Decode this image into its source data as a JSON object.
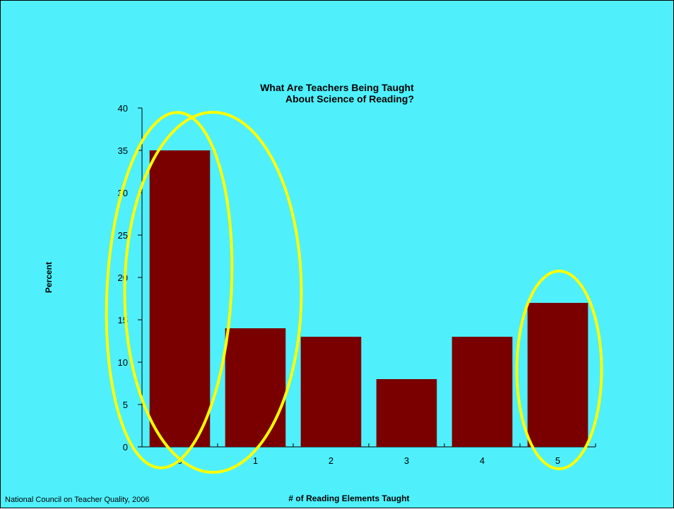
{
  "source_note": "National Council on Teacher Quality, 2006",
  "colors": {
    "background": "#4ff0fc",
    "bar": "#7a0000",
    "highlight": "#ffff00"
  },
  "chart_data": {
    "type": "bar",
    "title_lines": [
      "What Are Teachers Being Taught",
      "About Science of Reading?"
    ],
    "xlabel": "# of Reading Elements Taught",
    "ylabel": "Percent",
    "categories": [
      "0",
      "1",
      "2",
      "3",
      "4",
      "5"
    ],
    "values": [
      35,
      14,
      13,
      8,
      13,
      17
    ],
    "ylim": [
      0,
      40
    ],
    "yticks": [
      "0",
      "5",
      "10",
      "15",
      "20",
      "25",
      "30",
      "35",
      "40"
    ],
    "grid": false,
    "legend": "none",
    "highlighted_categories": [
      "0",
      "1",
      "5"
    ]
  }
}
